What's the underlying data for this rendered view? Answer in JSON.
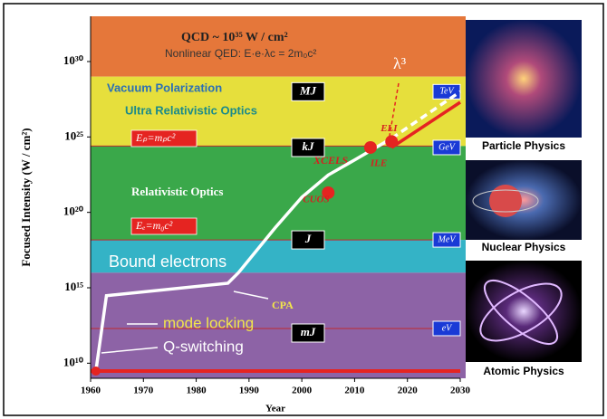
{
  "chart_data": {
    "type": "line",
    "y_label": "Focused Intensity (W / cm²)",
    "x_label": "Year",
    "log_y": true,
    "xlim": [
      1960,
      2030
    ],
    "xticks": [
      1960,
      1970,
      1980,
      1990,
      2000,
      2010,
      2020,
      2030
    ],
    "ylim": [
      1000000000.0,
      1e+33
    ],
    "yticks": [
      {
        "value": 10000000000.0,
        "label": "10¹⁰"
      },
      {
        "value": 1000000000000000.0,
        "label": "10¹⁵"
      },
      {
        "value": 1e+20,
        "label": "10²⁰"
      },
      {
        "value": 1e+25,
        "label": "10²⁵"
      },
      {
        "value": 1e+30,
        "label": "10³⁰"
      }
    ],
    "bands": [
      {
        "from": 1e+29,
        "to": 1e+33,
        "color": "#e5773a"
      },
      {
        "from": 2.5e+24,
        "to": 1e+29,
        "color": "#e6df3c"
      },
      {
        "from": 1.5e+18,
        "to": 2.5e+24,
        "color": "#3aa84a"
      },
      {
        "from": 1e+16,
        "to": 1.5e+18,
        "color": "#34b3c6"
      },
      {
        "from": 1000000000.0,
        "to": 1e+16,
        "color": "#8d63a6"
      }
    ],
    "series": [
      {
        "color": "#ffffff",
        "x": [
          1961,
          1963,
          1986,
          1988,
          1995,
          2000,
          2005,
          2010,
          2017
        ],
        "values": [
          3000000000.0,
          300000000000000.0,
          2000000000000000.0,
          1e+16,
          1e+19,
          1e+21,
          3e+22,
          3e+23,
          8e+24
        ]
      },
      {
        "color": "#ffffff",
        "dashed": true,
        "x": [
          2017,
          2030
        ],
        "values": [
          8e+24,
          1e+28
        ]
      },
      {
        "color": "#e52421",
        "x": [
          2017,
          2030
        ],
        "values": [
          2e+24,
          2e+27
        ]
      }
    ],
    "points": [
      {
        "x": 1961,
        "value": 3000000000.0,
        "color": "#e52421"
      },
      {
        "label": "CUOS",
        "x": 2005,
        "value": 2e+21,
        "color": "#e52421"
      },
      {
        "label": "ILE",
        "x": 2013,
        "value": 2e+24,
        "color": "#e52421"
      },
      {
        "label": "ELI",
        "x": 2017,
        "value": 5e+24,
        "color": "#e52421"
      }
    ],
    "reference_lines": [
      {
        "value": 2.5e+24,
        "color": "#c0282d"
      },
      {
        "value": 1.5e+18,
        "color": "#c0282d"
      },
      {
        "value": 2000000000000.0,
        "color": "#c0282d"
      },
      {
        "value": 3000000000.0,
        "color": "#e52421",
        "width": 4
      }
    ],
    "energy_levels": [
      {
        "label": "MJ",
        "value": 1e+28
      },
      {
        "label": "kJ",
        "value": 2e+24
      },
      {
        "label": "J",
        "value": 1.5e+18
      },
      {
        "label": "mJ",
        "value": 1000000000000.0
      }
    ],
    "energy_units": [
      {
        "label": "TeV",
        "value": 1e+28
      },
      {
        "label": "GeV",
        "value": 2e+24
      },
      {
        "label": "MeV",
        "value": 1.5e+18
      },
      {
        "label": "eV",
        "value": 2000000000000.0
      }
    ],
    "annotations": [
      "QCD ~ 10³⁵ W / cm²",
      "Nonlinear QED: E·e·λc = 2m₀c²",
      "Vacuum Polarization",
      "Ultra Relativistic Optics",
      "Relativistic Optics",
      "Bound electrons",
      "mode locking",
      "Q-switching",
      "CPA",
      "XCELS",
      "λ³",
      "Eₚ=mₚc²",
      "Eₑ=m₀c²"
    ],
    "panels": [
      "Particle Physics",
      "Nuclear Physics",
      "Atomic Physics"
    ]
  }
}
